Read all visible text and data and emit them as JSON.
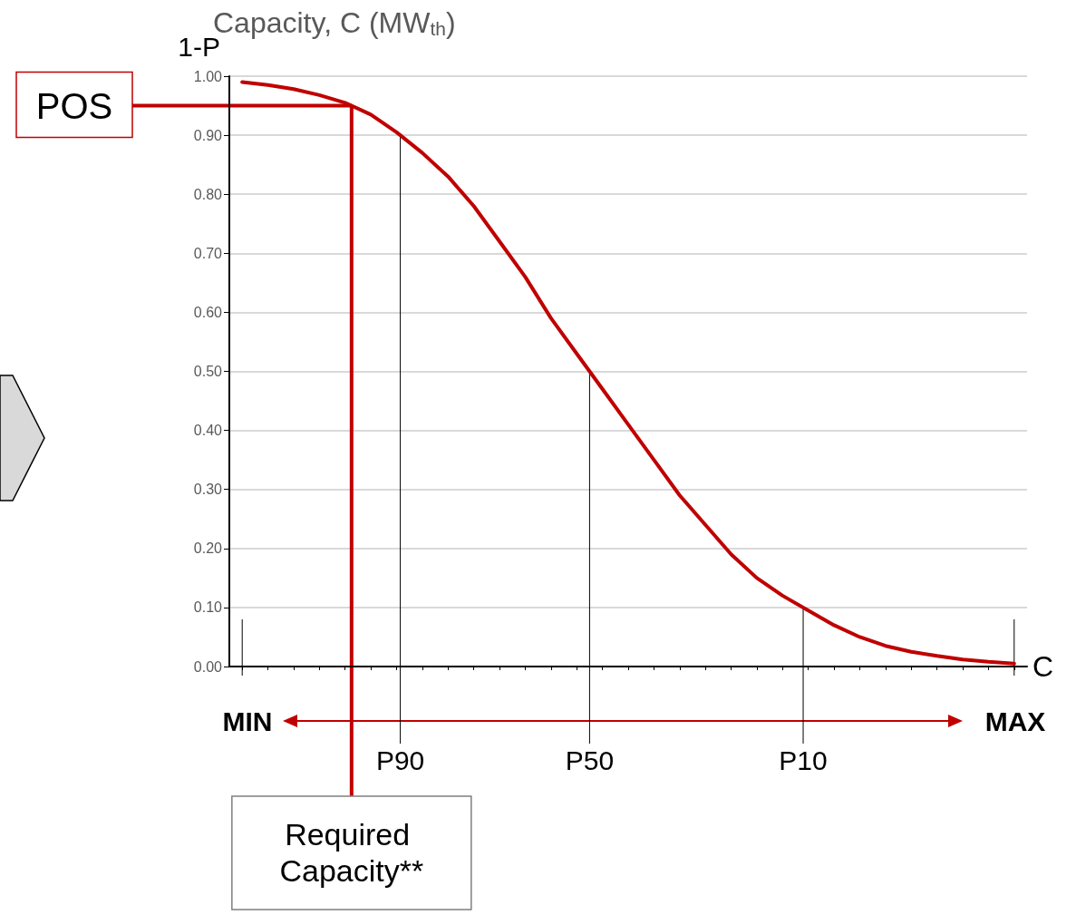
{
  "chart_data": {
    "type": "line",
    "title": "Capacity, C (MW$_{th}$)",
    "ylabel": "1-P",
    "xlabel": "C",
    "categories": [
      null,
      null,
      null,
      null,
      null,
      null,
      null,
      null,
      null,
      null,
      null,
      null,
      null,
      null,
      null,
      null,
      null,
      null,
      null,
      null,
      null,
      null,
      null,
      null,
      null,
      null,
      null,
      null,
      null,
      null,
      null
    ],
    "series": [
      {
        "color": "#c00000",
        "values": [
          0.99,
          0.985,
          0.978,
          0.968,
          0.955,
          0.935,
          0.905,
          0.87,
          0.83,
          0.78,
          0.72,
          0.66,
          0.59,
          0.53,
          0.47,
          0.41,
          0.35,
          0.29,
          0.24,
          0.19,
          0.15,
          0.12,
          0.095,
          0.07,
          0.05,
          0.035,
          0.025,
          0.018,
          0.012,
          0.008,
          0.005
        ]
      }
    ],
    "ylim": [
      0,
      1
    ],
    "yticks": [
      {
        "value": 0,
        "label": "0.00"
      },
      {
        "value": 0.1,
        "label": "0.10"
      },
      {
        "value": 0.2,
        "label": "0.20"
      },
      {
        "value": 0.3,
        "label": "0.30"
      },
      {
        "value": 0.4,
        "label": "0.40"
      },
      {
        "value": 0.5,
        "label": "0.50"
      },
      {
        "value": 0.6,
        "label": "0.60"
      },
      {
        "value": 0.7,
        "label": "0.70"
      },
      {
        "value": 0.8,
        "label": "0.80"
      },
      {
        "value": 0.9,
        "label": "0.90"
      },
      {
        "value": 1,
        "label": "1.00"
      }
    ],
    "ref_lines": [
      {
        "axis": "y",
        "value": 0.95,
        "label": "POS",
        "color": "#c00000"
      }
    ],
    "annotations": [
      "MIN",
      "MAX",
      {
        "text": "Required Capacity**",
        "y": 0.95
      },
      {
        "text": "P90",
        "y": 0.9
      },
      {
        "text": "P50",
        "y": 0.5
      },
      {
        "text": "P10",
        "y": 0.1
      }
    ],
    "grid": "y",
    "marker": "none",
    "line_style": "solid"
  }
}
